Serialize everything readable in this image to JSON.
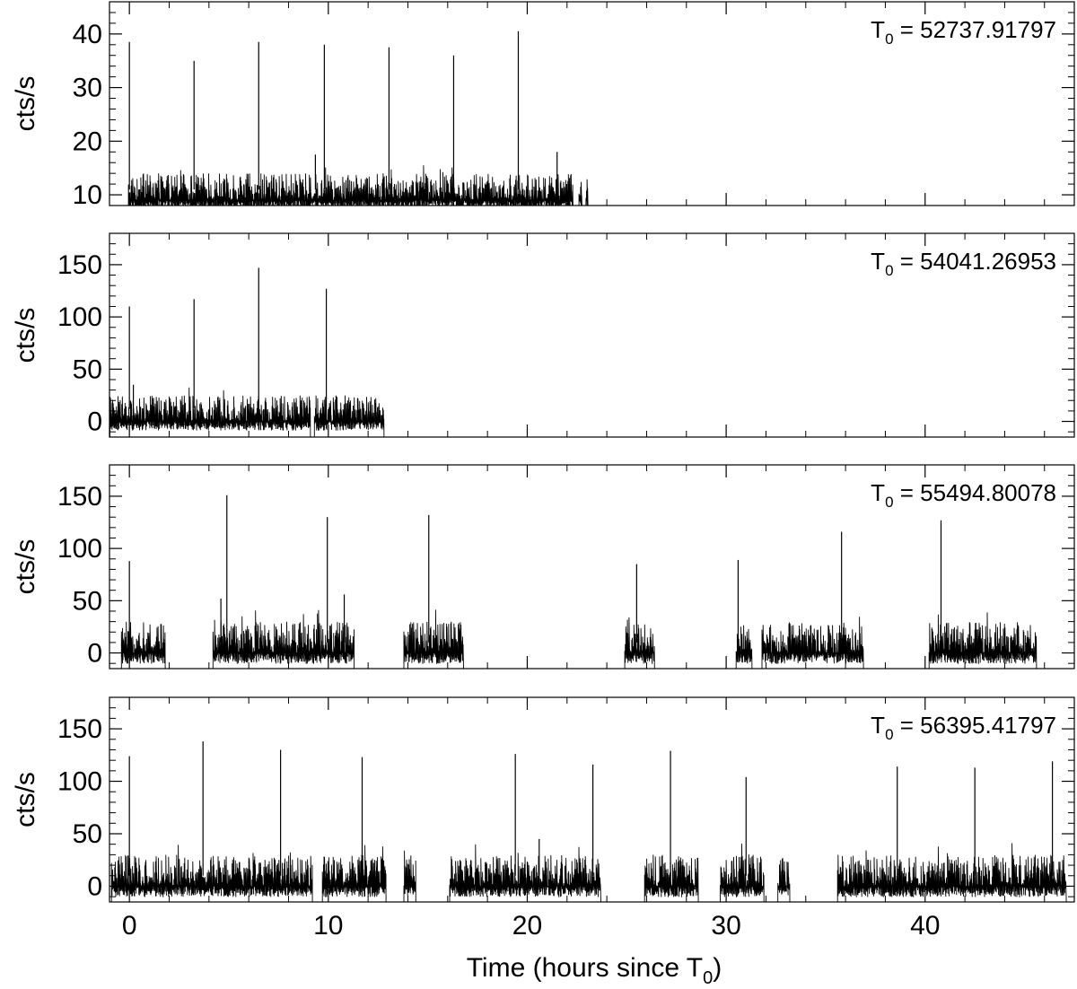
{
  "xlabel": {
    "prefix": "Time (hours since T",
    "sub": "0",
    "suffix": ")"
  },
  "chart_data": [
    {
      "type": "line",
      "t0_label": {
        "T": "T",
        "sub": "0",
        "eq": " =  ",
        "value": "52737.91797"
      },
      "ylabel": "cts/s",
      "xlim": [
        -1,
        47.5
      ],
      "ylim": [
        8,
        46
      ],
      "yticks": [
        10,
        20,
        30,
        40
      ],
      "y_minor_step": 2,
      "show_xticklabels": false,
      "segments": [
        [
          -0.05,
          22.3
        ],
        [
          22.6,
          22.75
        ],
        [
          22.95,
          23.05
        ]
      ],
      "base_level": 8,
      "noise": {
        "low": 9,
        "high": 14,
        "mean": 11
      },
      "peaks": [
        {
          "t": 0.0,
          "v": 38.5
        },
        {
          "t": 3.25,
          "v": 35.0
        },
        {
          "t": 6.5,
          "v": 38.5
        },
        {
          "t": 9.8,
          "v": 38.0
        },
        {
          "t": 13.05,
          "v": 37.5
        },
        {
          "t": 16.3,
          "v": 36.0
        },
        {
          "t": 19.55,
          "v": 40.5
        },
        {
          "t": 9.35,
          "v": 17.5
        },
        {
          "t": 21.5,
          "v": 18.0
        }
      ]
    },
    {
      "type": "line",
      "t0_label": {
        "T": "T",
        "sub": "0",
        "eq": " =  ",
        "value": "54041.26953"
      },
      "ylabel": "cts/s",
      "xlim": [
        -1,
        47.5
      ],
      "ylim": [
        -15,
        180
      ],
      "yticks": [
        0,
        50,
        100,
        150
      ],
      "y_minor_step": 10,
      "show_xticklabels": false,
      "segments": [
        [
          -1,
          9.1
        ],
        [
          9.3,
          12.8
        ]
      ],
      "base_level": -15,
      "noise": {
        "low": 0,
        "high": 25,
        "mean": 12
      },
      "peaks": [
        {
          "t": 0.0,
          "v": 110
        },
        {
          "t": 3.25,
          "v": 117
        },
        {
          "t": 6.5,
          "v": 147
        },
        {
          "t": 9.9,
          "v": 127
        },
        {
          "t": 0.2,
          "v": 35
        }
      ]
    },
    {
      "type": "line",
      "t0_label": {
        "T": "T",
        "sub": "0",
        "eq": " =  ",
        "value": "55494.80078"
      },
      "ylabel": "cts/s",
      "xlim": [
        -1,
        47.5
      ],
      "ylim": [
        -15,
        180
      ],
      "yticks": [
        0,
        50,
        100,
        150
      ],
      "y_minor_step": 10,
      "show_xticklabels": false,
      "segments": [
        [
          -0.4,
          1.8
        ],
        [
          4.2,
          11.3
        ],
        [
          13.8,
          16.8
        ],
        [
          24.9,
          26.4
        ],
        [
          30.5,
          31.3
        ],
        [
          31.8,
          36.9
        ],
        [
          40.2,
          45.6
        ]
      ],
      "base_level": -15,
      "noise": {
        "low": 0,
        "high": 30,
        "mean": 10
      },
      "peaks": [
        {
          "t": 0.0,
          "v": 88
        },
        {
          "t": 4.9,
          "v": 151
        },
        {
          "t": 9.95,
          "v": 130
        },
        {
          "t": 15.05,
          "v": 132
        },
        {
          "t": 25.5,
          "v": 85
        },
        {
          "t": 30.6,
          "v": 89
        },
        {
          "t": 35.8,
          "v": 116
        },
        {
          "t": 40.8,
          "v": 127
        },
        {
          "t": 10.8,
          "v": 56
        },
        {
          "t": 4.6,
          "v": 52
        }
      ]
    },
    {
      "type": "line",
      "t0_label": {
        "T": "T",
        "sub": "0",
        "eq": " =  ",
        "value": "56395.41797"
      },
      "ylabel": "cts/s",
      "xlim": [
        -1,
        47.5
      ],
      "ylim": [
        -15,
        180
      ],
      "yticks": [
        0,
        50,
        100,
        150
      ],
      "y_minor_step": 10,
      "show_xticklabels": true,
      "xticks": [
        0,
        10,
        20,
        30,
        40
      ],
      "x_minor_step": 2,
      "segments": [
        [
          -0.9,
          9.2
        ],
        [
          9.7,
          12.9
        ],
        [
          13.8,
          14.4
        ],
        [
          16.1,
          23.7
        ],
        [
          25.9,
          28.6
        ],
        [
          29.7,
          31.9
        ],
        [
          32.6,
          33.2
        ],
        [
          35.6,
          47.1
        ]
      ],
      "base_level": -15,
      "noise": {
        "low": 0,
        "high": 30,
        "mean": 10
      },
      "peaks": [
        {
          "t": 0.0,
          "v": 124
        },
        {
          "t": 3.7,
          "v": 138
        },
        {
          "t": 7.6,
          "v": 130
        },
        {
          "t": 11.7,
          "v": 123
        },
        {
          "t": 19.4,
          "v": 126
        },
        {
          "t": 23.3,
          "v": 116
        },
        {
          "t": 27.2,
          "v": 129
        },
        {
          "t": 31.0,
          "v": 104
        },
        {
          "t": 38.6,
          "v": 114
        },
        {
          "t": 42.5,
          "v": 113
        },
        {
          "t": 46.4,
          "v": 119
        },
        {
          "t": 20.6,
          "v": 45
        }
      ]
    }
  ]
}
